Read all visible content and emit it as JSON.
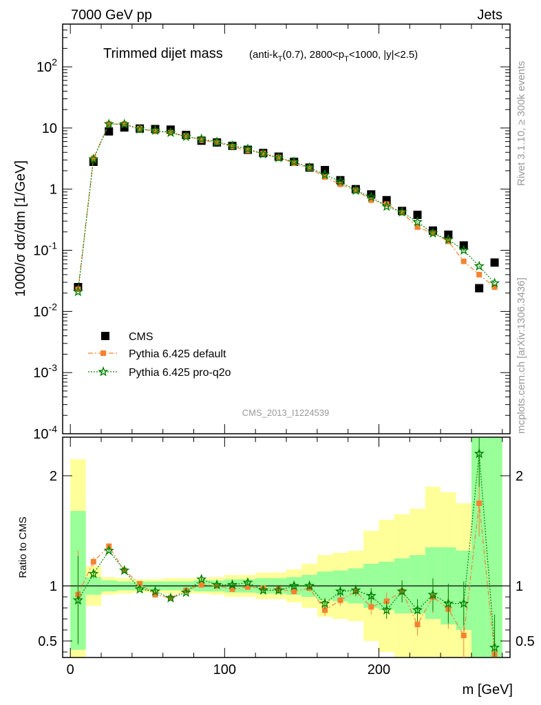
{
  "header": {
    "left": "7000 GeV pp",
    "right": "Jets"
  },
  "side": {
    "rivet": "Rivet 3.1.10, ≥ 300k events",
    "mcplots": "mcplots.cern.ch [arXiv:1306.3436]"
  },
  "watermark": "CMS_2013_I1224539",
  "colors": {
    "cms": "#000000",
    "default": "#f58231",
    "proq2o": "#008000",
    "band_outer": "#ffff99",
    "band_inner": "#99ff99"
  },
  "chart_data": [
    {
      "type": "scatter",
      "title": "Trimmed dijet mass",
      "subtitle": "(anti-k_T(0.7), 2800<p_T<1000, |y|<2.5)",
      "xlabel": "m [GeV]",
      "ylabel": "1000/σ dσ/dm [1/GeV]",
      "yscale": "log",
      "xlim": [
        -5,
        285
      ],
      "ylim": [
        0.0001,
        500
      ],
      "y_ticks": [
        "10^{-4}",
        "10^{-3}",
        "10^{-2}",
        "10^{-1}",
        "1",
        "10",
        "10^{2}"
      ],
      "legend": {
        "placement": "bottom-left",
        "entries": [
          "CMS",
          "Pythia 6.425 default",
          "Pythia 6.425 pro-q2o"
        ]
      },
      "x": [
        5,
        15,
        25,
        35,
        45,
        55,
        65,
        75,
        85,
        95,
        105,
        115,
        125,
        135,
        145,
        155,
        165,
        175,
        185,
        195,
        205,
        215,
        225,
        235,
        245,
        255,
        265,
        275
      ],
      "series": [
        {
          "name": "CMS",
          "marker": "square",
          "values": [
            0.025,
            2.8,
            8.8,
            10.2,
            9.8,
            9.6,
            9.4,
            7.7,
            6.2,
            5.8,
            5.1,
            4.4,
            3.9,
            3.4,
            2.8,
            2.25,
            2.05,
            1.4,
            1.0,
            0.82,
            0.66,
            0.44,
            0.38,
            0.21,
            0.18,
            0.12,
            0.024,
            0.063
          ]
        },
        {
          "name": "Pythia 6.425 default",
          "marker": "square",
          "line": "dashdot",
          "values": [
            0.023,
            3.2,
            11.6,
            11.6,
            9.8,
            8.8,
            8.4,
            7.4,
            6.3,
            5.8,
            4.95,
            4.3,
            3.85,
            3.3,
            2.65,
            2.2,
            1.58,
            1.2,
            0.96,
            0.66,
            0.57,
            0.41,
            0.24,
            0.19,
            0.14,
            0.066,
            0.04,
            0.025
          ]
        },
        {
          "name": "Pythia 6.425 pro-q2o",
          "marker": "star",
          "line": "dotted",
          "values": [
            0.021,
            3.1,
            11.6,
            11.6,
            9.5,
            9.1,
            8.4,
            7.2,
            6.6,
            5.9,
            5.15,
            4.55,
            3.75,
            3.25,
            2.8,
            2.25,
            1.72,
            1.33,
            0.95,
            0.74,
            0.52,
            0.42,
            0.29,
            0.19,
            0.15,
            0.1,
            0.055,
            0.029
          ]
        }
      ]
    },
    {
      "type": "scatter",
      "ylabel": "Ratio to CMS",
      "xlabel": "m [GeV]",
      "xlim": [
        -5,
        285
      ],
      "ylim": [
        0.35,
        2.35
      ],
      "x_ticks": [
        0,
        100,
        200
      ],
      "y_ticks": [
        0.5,
        1,
        2
      ],
      "x": [
        5,
        15,
        25,
        35,
        45,
        55,
        65,
        75,
        85,
        95,
        105,
        115,
        125,
        135,
        145,
        155,
        165,
        175,
        185,
        195,
        205,
        215,
        225,
        235,
        245,
        255,
        265,
        275
      ],
      "band_outer": [
        [
          0.35,
          2.15
        ],
        [
          0.82,
          1.18
        ],
        [
          0.92,
          1.08
        ],
        [
          0.93,
          1.07
        ],
        [
          0.94,
          1.06
        ],
        [
          0.94,
          1.06
        ],
        [
          0.93,
          1.07
        ],
        [
          0.93,
          1.07
        ],
        [
          0.93,
          1.07
        ],
        [
          0.92,
          1.08
        ],
        [
          0.9,
          1.1
        ],
        [
          0.9,
          1.1
        ],
        [
          0.88,
          1.12
        ],
        [
          0.88,
          1.12
        ],
        [
          0.85,
          1.15
        ],
        [
          0.8,
          1.2
        ],
        [
          0.72,
          1.28
        ],
        [
          0.7,
          1.3
        ],
        [
          0.68,
          1.32
        ],
        [
          0.5,
          1.5
        ],
        [
          0.4,
          1.6
        ],
        [
          0.35,
          1.65
        ],
        [
          0.35,
          1.7
        ],
        [
          0.35,
          1.9
        ],
        [
          0.35,
          1.85
        ],
        [
          0.35,
          1.75
        ],
        [
          0.35,
          2.35
        ],
        [
          0.35,
          2.35
        ]
      ],
      "band_inner": [
        [
          0.42,
          1.68
        ],
        [
          0.92,
          1.08
        ],
        [
          0.95,
          1.05
        ],
        [
          0.96,
          1.04
        ],
        [
          0.96,
          1.04
        ],
        [
          0.96,
          1.04
        ],
        [
          0.96,
          1.04
        ],
        [
          0.96,
          1.04
        ],
        [
          0.95,
          1.05
        ],
        [
          0.95,
          1.05
        ],
        [
          0.94,
          1.06
        ],
        [
          0.94,
          1.06
        ],
        [
          0.93,
          1.07
        ],
        [
          0.93,
          1.07
        ],
        [
          0.92,
          1.08
        ],
        [
          0.9,
          1.1
        ],
        [
          0.87,
          1.13
        ],
        [
          0.86,
          1.14
        ],
        [
          0.84,
          1.16
        ],
        [
          0.8,
          1.2
        ],
        [
          0.78,
          1.22
        ],
        [
          0.75,
          1.25
        ],
        [
          0.75,
          1.28
        ],
        [
          0.7,
          1.35
        ],
        [
          0.65,
          1.35
        ],
        [
          0.6,
          1.32
        ],
        [
          0.35,
          2.35
        ],
        [
          0.35,
          2.35
        ]
      ],
      "series": [
        {
          "name": "Pythia 6.425 default",
          "values": [
            0.92,
            1.22,
            1.36,
            1.14,
            1.02,
            0.92,
            0.89,
            0.96,
            1.01,
            1.0,
            0.97,
            0.99,
            0.98,
            0.97,
            0.95,
            0.98,
            0.78,
            0.87,
            0.95,
            0.81,
            0.86,
            0.95,
            0.65,
            0.9,
            0.79,
            0.55,
            1.75,
            0.38
          ],
          "err": [
            0.4,
            0.04,
            0.02,
            0.02,
            0.02,
            0.02,
            0.02,
            0.02,
            0.02,
            0.02,
            0.02,
            0.02,
            0.02,
            0.03,
            0.03,
            0.03,
            0.05,
            0.05,
            0.05,
            0.07,
            0.08,
            0.1,
            0.1,
            0.15,
            0.18,
            0.2,
            0.3,
            0.3
          ]
        },
        {
          "name": "Pythia 6.425 pro-q2o",
          "values": [
            0.87,
            1.11,
            1.32,
            1.14,
            0.97,
            0.95,
            0.89,
            0.94,
            1.06,
            1.01,
            1.01,
            1.03,
            0.96,
            0.96,
            1.0,
            1.0,
            0.84,
            0.95,
            0.96,
            0.91,
            0.78,
            0.95,
            0.78,
            0.92,
            0.84,
            0.84,
            2.2,
            0.44
          ],
          "err": [
            0.4,
            0.04,
            0.02,
            0.02,
            0.02,
            0.02,
            0.02,
            0.02,
            0.02,
            0.02,
            0.02,
            0.02,
            0.02,
            0.03,
            0.03,
            0.03,
            0.05,
            0.05,
            0.05,
            0.07,
            0.08,
            0.1,
            0.1,
            0.15,
            0.18,
            0.2,
            0.3,
            0.3
          ]
        }
      ]
    }
  ]
}
